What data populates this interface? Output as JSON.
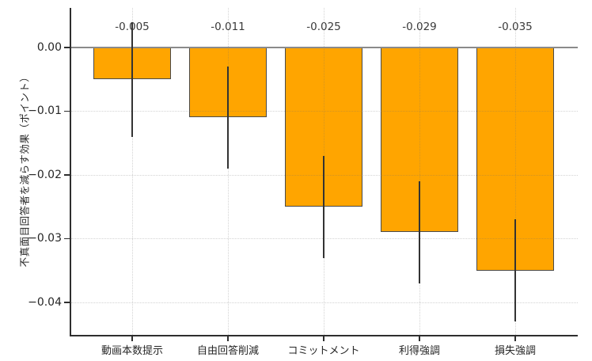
{
  "chart_data": {
    "type": "bar",
    "title": "",
    "xlabel": "",
    "ylabel": "不真面目回答者を減らす効果（ポイント）",
    "categories": [
      "動画本数提示",
      "自由回答削減",
      "コミットメント",
      "利得強調",
      "損失強調"
    ],
    "values": [
      -0.005,
      -0.011,
      -0.025,
      -0.029,
      -0.035
    ],
    "bar_labels": [
      "-0.005",
      "-0.011",
      "-0.025",
      "-0.029",
      "-0.035"
    ],
    "error_low": [
      -0.014,
      -0.019,
      -0.033,
      -0.037,
      -0.043
    ],
    "error_high": [
      0.004,
      -0.003,
      -0.017,
      -0.021,
      -0.027
    ],
    "yticks": [
      0.0,
      -0.01,
      -0.02,
      -0.03,
      -0.04
    ],
    "ytick_labels": [
      "0.00",
      "−0.01",
      "−0.02",
      "−0.03",
      "−0.04"
    ],
    "ylim": [
      -0.0451,
      0.0062
    ],
    "grid": "dotted, horizontal and vertical",
    "legend": "none",
    "colors": {
      "bar_fill": "#FFA500",
      "bar_edge": "#4a4a4a",
      "error_bar": "#333333",
      "zero_line": "#8a8a8a",
      "grid": "#d2d2d2",
      "spine": "#2e2e2e",
      "tick_text": "#262626",
      "label_text": "#3a3a3a",
      "background": "#ffffff"
    }
  }
}
